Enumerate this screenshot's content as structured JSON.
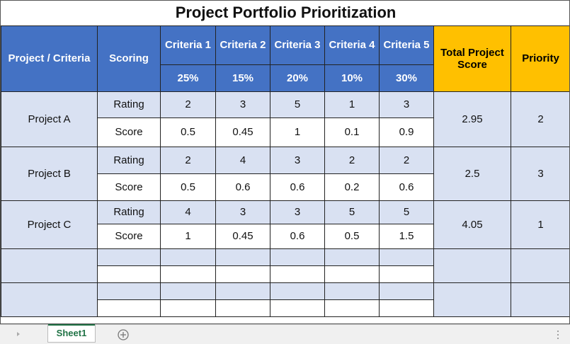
{
  "title": "Project Portfolio Prioritization",
  "table": {
    "header": [
      "Project / Criteria",
      "Scoring",
      "Criteria 1",
      "Criteria 2",
      "Criteria 3",
      "Criteria 4",
      "Criteria 5",
      "Total Project Score",
      "Priority"
    ],
    "weights": [
      "25%",
      "15%",
      "20%",
      "10%",
      "30%"
    ],
    "projects": [
      {
        "name": "Project A",
        "rows": [
          {
            "label": "Rating",
            "values": [
              2,
              3,
              5,
              1,
              3
            ]
          },
          {
            "label": "Score",
            "values": [
              0.5,
              0.45,
              1,
              0.1,
              0.9
            ]
          }
        ],
        "total": 2.95,
        "priority": 2
      },
      {
        "name": "Project B",
        "rows": [
          {
            "label": "Rating",
            "values": [
              2,
              4,
              3,
              2,
              2
            ]
          },
          {
            "label": "Score",
            "values": [
              0.5,
              0.6,
              0.6,
              0.2,
              0.6
            ]
          }
        ],
        "total": 2.5,
        "priority": 3
      },
      {
        "name": "Project C",
        "rows": [
          {
            "label": "Rating",
            "values": [
              4,
              3,
              3,
              5,
              5
            ]
          },
          {
            "label": "Score",
            "values": [
              1,
              0.45,
              0.6,
              0.5,
              1.5
            ]
          }
        ],
        "total": 4.05,
        "priority": 1
      }
    ]
  },
  "sheet_tab": "Sheet1"
}
